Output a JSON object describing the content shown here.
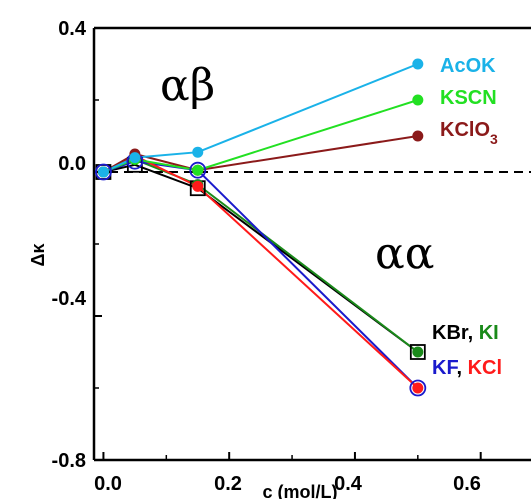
{
  "chart_data": {
    "type": "line",
    "xlabel": "c (mol/L)",
    "ylabel": "Δκ",
    "xlim": [
      -0.015,
      0.68
    ],
    "ylim": [
      -0.8,
      0.4
    ],
    "x_ticks": [
      "0.0",
      "0.2",
      "0.4",
      "0.6"
    ],
    "y_ticks": [
      "0.4",
      "0.0",
      "-0.4",
      "-0.8"
    ],
    "reference_line": {
      "y": 0.0,
      "style": "dashed"
    },
    "region_labels": [
      "αβ",
      "αα"
    ],
    "series": [
      {
        "name": "AcOK",
        "color": "#1ab2e8",
        "marker": "dot",
        "x": [
          0.0,
          0.05,
          0.15,
          0.5
        ],
        "y": [
          0.0,
          0.04,
          0.055,
          0.3
        ]
      },
      {
        "name": "KSCN",
        "color": "#22e022",
        "marker": "dot",
        "x": [
          0.0,
          0.05,
          0.15,
          0.5
        ],
        "y": [
          0.0,
          0.035,
          0.005,
          0.2
        ]
      },
      {
        "name": "KClO3",
        "color": "#8b1a1a",
        "marker": "dot",
        "x": [
          0.0,
          0.05,
          0.15,
          0.5
        ],
        "y": [
          0.0,
          0.05,
          0.005,
          0.1
        ]
      },
      {
        "name": "KBr",
        "color": "#000000",
        "marker": "open-square",
        "x": [
          0.0,
          0.05,
          0.15,
          0.5
        ],
        "y": [
          0.0,
          0.02,
          -0.045,
          -0.5
        ]
      },
      {
        "name": "KI",
        "color": "#1a8a1a",
        "marker": "dot",
        "x": [
          0.0,
          0.05,
          0.15,
          0.5
        ],
        "y": [
          0.0,
          0.035,
          -0.035,
          -0.5
        ]
      },
      {
        "name": "KF",
        "color": "#1a1acc",
        "marker": "open-circle",
        "x": [
          0.0,
          0.05,
          0.15,
          0.5
        ],
        "y": [
          0.0,
          0.03,
          0.005,
          -0.6
        ]
      },
      {
        "name": "KCl",
        "color": "#ff1a1a",
        "marker": "dot",
        "x": [
          0.0,
          0.05,
          0.15,
          0.5
        ],
        "y": [
          0.0,
          0.045,
          -0.04,
          -0.6
        ]
      }
    ],
    "labels": {
      "acok": "AcOK",
      "kscn": "KSCN",
      "kclo3_main": "KClO",
      "kclo3_sub": "3",
      "kbr": "KBr",
      "comma1": ", ",
      "ki": "KI",
      "kf": "KF",
      "comma2": ", ",
      "kcl": "KCl"
    }
  }
}
